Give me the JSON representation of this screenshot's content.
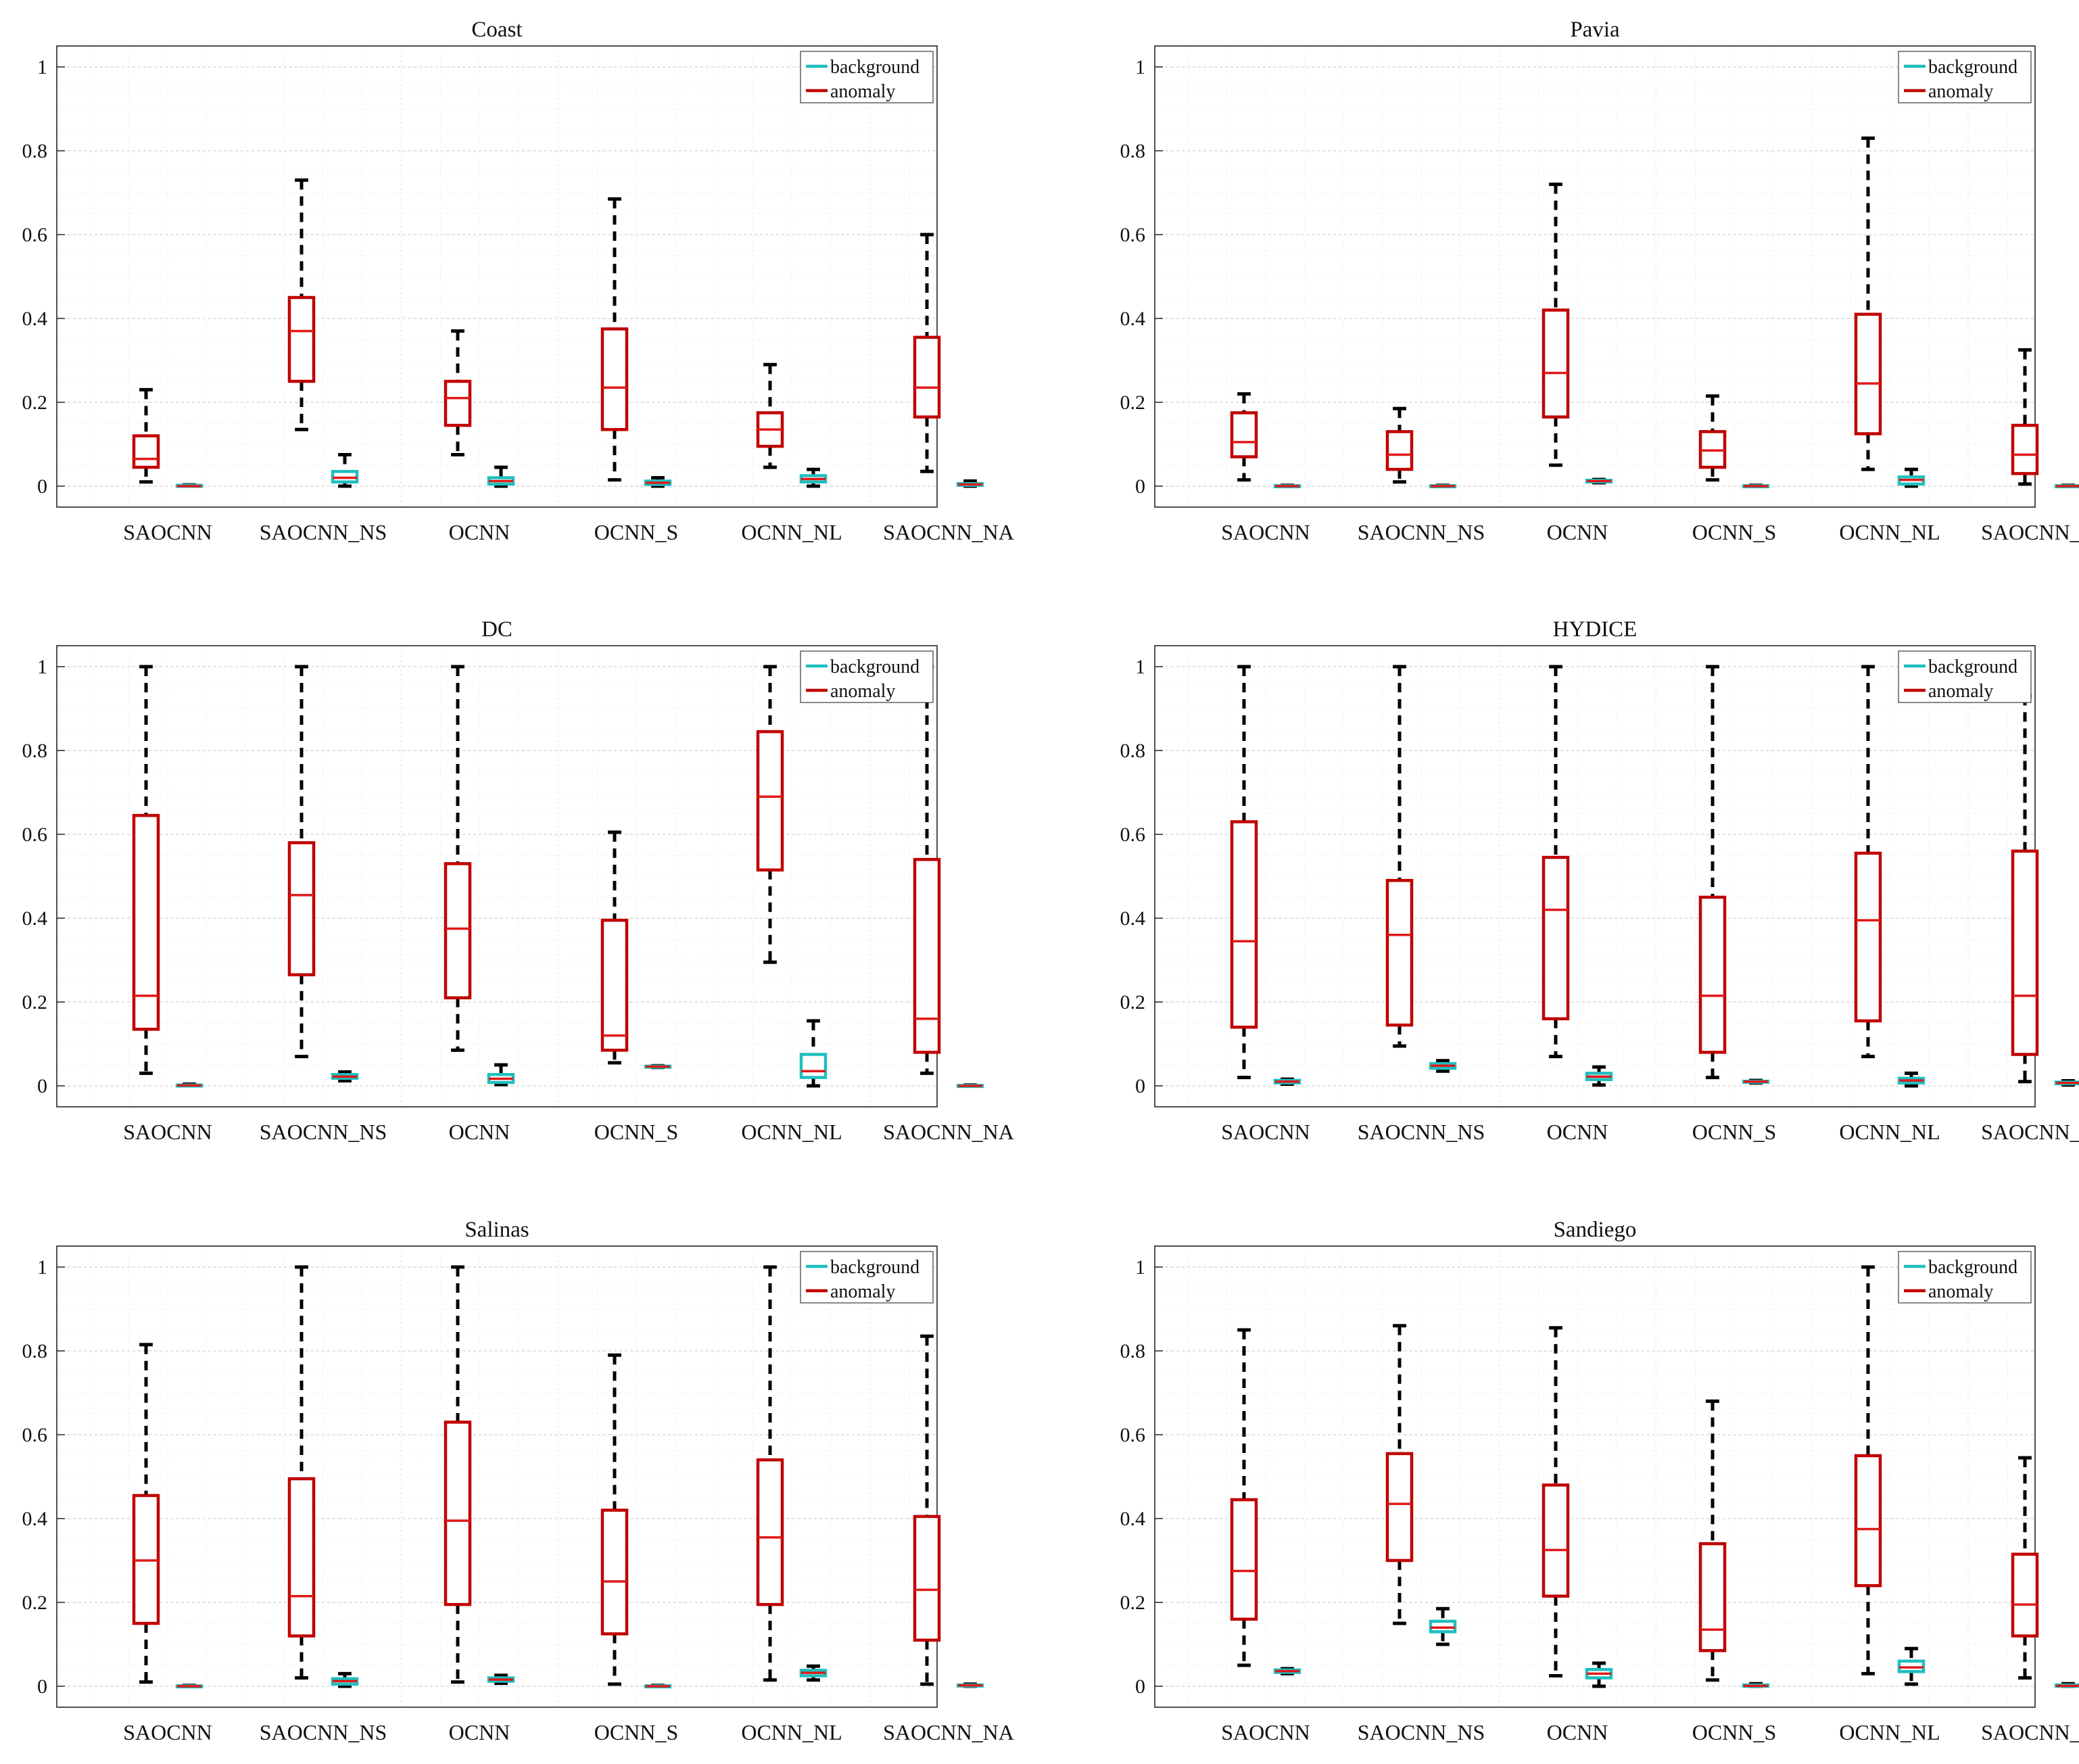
{
  "colors": {
    "background": "#1fbfbf",
    "anomaly": "#c00000",
    "median": "#e01818",
    "whisker": "#000000",
    "grid": "#d9d9d9",
    "axis": "#262626"
  },
  "chart_data": [
    {
      "type": "box",
      "title": "Coast",
      "categories": [
        "SAOCNN",
        "SAOCNN_NS",
        "OCNN",
        "OCNN_S",
        "OCNN_NL",
        "SAOCNN_NA"
      ],
      "legend": [
        "background",
        "anomaly"
      ],
      "legend_position": "top-right",
      "ylim": [
        -0.05,
        1.05
      ],
      "yticks": [
        "0",
        "0.2",
        "0.4",
        "0.6",
        "0.8",
        "1"
      ],
      "grid": true,
      "anomaly": [
        {
          "min": 0.01,
          "q1": 0.045,
          "median": 0.065,
          "q3": 0.12,
          "max": 0.23
        },
        {
          "min": 0.135,
          "q1": 0.25,
          "median": 0.37,
          "q3": 0.45,
          "max": 0.73
        },
        {
          "min": 0.075,
          "q1": 0.145,
          "median": 0.21,
          "q3": 0.25,
          "max": 0.37
        },
        {
          "min": 0.015,
          "q1": 0.135,
          "median": 0.235,
          "q3": 0.375,
          "max": 0.685
        },
        {
          "min": 0.045,
          "q1": 0.095,
          "median": 0.135,
          "q3": 0.175,
          "max": 0.29
        },
        {
          "min": 0.035,
          "q1": 0.165,
          "median": 0.235,
          "q3": 0.355,
          "max": 0.6
        }
      ],
      "background": [
        {
          "min": 0.0,
          "q1": 0.0,
          "median": 0.0,
          "q3": 0.002,
          "max": 0.003
        },
        {
          "min": 0.0,
          "q1": 0.01,
          "median": 0.02,
          "q3": 0.035,
          "max": 0.075
        },
        {
          "min": 0.0,
          "q1": 0.005,
          "median": 0.012,
          "q3": 0.02,
          "max": 0.045
        },
        {
          "min": 0.0,
          "q1": 0.004,
          "median": 0.008,
          "q3": 0.012,
          "max": 0.02
        },
        {
          "min": 0.0,
          "q1": 0.01,
          "median": 0.017,
          "q3": 0.025,
          "max": 0.04
        },
        {
          "min": 0.0,
          "q1": 0.002,
          "median": 0.004,
          "q3": 0.006,
          "max": 0.012
        }
      ]
    },
    {
      "type": "box",
      "title": "Pavia",
      "categories": [
        "SAOCNN",
        "SAOCNN_NS",
        "OCNN",
        "OCNN_S",
        "OCNN_NL",
        "SAOCNN_NA"
      ],
      "legend": [
        "background",
        "anomaly"
      ],
      "legend_position": "top-right",
      "ylim": [
        -0.05,
        1.05
      ],
      "yticks": [
        "0",
        "0.2",
        "0.4",
        "0.6",
        "0.8",
        "1"
      ],
      "grid": true,
      "anomaly": [
        {
          "min": 0.015,
          "q1": 0.07,
          "median": 0.105,
          "q3": 0.175,
          "max": 0.22
        },
        {
          "min": 0.01,
          "q1": 0.04,
          "median": 0.075,
          "q3": 0.13,
          "max": 0.185
        },
        {
          "min": 0.05,
          "q1": 0.165,
          "median": 0.27,
          "q3": 0.42,
          "max": 0.72
        },
        {
          "min": 0.015,
          "q1": 0.045,
          "median": 0.085,
          "q3": 0.13,
          "max": 0.215
        },
        {
          "min": 0.04,
          "q1": 0.125,
          "median": 0.245,
          "q3": 0.41,
          "max": 0.83
        },
        {
          "min": 0.005,
          "q1": 0.03,
          "median": 0.075,
          "q3": 0.145,
          "max": 0.325
        }
      ],
      "background": [
        {
          "min": 0.0,
          "q1": 0.0,
          "median": 0.0,
          "q3": 0.001,
          "max": 0.002
        },
        {
          "min": 0.0,
          "q1": 0.0,
          "median": 0.0,
          "q3": 0.001,
          "max": 0.002
        },
        {
          "min": 0.008,
          "q1": 0.01,
          "median": 0.012,
          "q3": 0.014,
          "max": 0.016
        },
        {
          "min": 0.0,
          "q1": 0.0,
          "median": 0.0,
          "q3": 0.001,
          "max": 0.002
        },
        {
          "min": 0.0,
          "q1": 0.005,
          "median": 0.015,
          "q3": 0.022,
          "max": 0.04
        },
        {
          "min": 0.0,
          "q1": 0.0,
          "median": 0.0,
          "q3": 0.001,
          "max": 0.002
        }
      ]
    },
    {
      "type": "box",
      "title": "DC",
      "categories": [
        "SAOCNN",
        "SAOCNN_NS",
        "OCNN",
        "OCNN_S",
        "OCNN_NL",
        "SAOCNN_NA"
      ],
      "legend": [
        "background",
        "anomaly"
      ],
      "legend_position": "top-right",
      "ylim": [
        -0.05,
        1.05
      ],
      "yticks": [
        "0",
        "0.2",
        "0.4",
        "0.6",
        "0.8",
        "1"
      ],
      "grid": true,
      "anomaly": [
        {
          "min": 0.03,
          "q1": 0.135,
          "median": 0.215,
          "q3": 0.645,
          "max": 1.0
        },
        {
          "min": 0.07,
          "q1": 0.265,
          "median": 0.455,
          "q3": 0.58,
          "max": 1.0
        },
        {
          "min": 0.085,
          "q1": 0.21,
          "median": 0.375,
          "q3": 0.53,
          "max": 1.0
        },
        {
          "min": 0.055,
          "q1": 0.085,
          "median": 0.12,
          "q3": 0.395,
          "max": 0.605
        },
        {
          "min": 0.295,
          "q1": 0.515,
          "median": 0.69,
          "q3": 0.845,
          "max": 1.0
        },
        {
          "min": 0.03,
          "q1": 0.08,
          "median": 0.16,
          "q3": 0.54,
          "max": 1.0
        }
      ],
      "background": [
        {
          "min": 0.0,
          "q1": 0.0,
          "median": 0.001,
          "q3": 0.002,
          "max": 0.004
        },
        {
          "min": 0.012,
          "q1": 0.018,
          "median": 0.022,
          "q3": 0.027,
          "max": 0.033
        },
        {
          "min": 0.003,
          "q1": 0.008,
          "median": 0.017,
          "q3": 0.027,
          "max": 0.05
        },
        {
          "min": 0.044,
          "q1": 0.045,
          "median": 0.046,
          "q3": 0.047,
          "max": 0.048
        },
        {
          "min": 0.0,
          "q1": 0.02,
          "median": 0.035,
          "q3": 0.075,
          "max": 0.155
        },
        {
          "min": 0.0,
          "q1": 0.0,
          "median": 0.0,
          "q3": 0.001,
          "max": 0.002
        }
      ]
    },
    {
      "type": "box",
      "title": "HYDICE",
      "categories": [
        "SAOCNN",
        "SAOCNN_NS",
        "OCNN",
        "OCNN_S",
        "OCNN_NL",
        "SAOCNN_NA"
      ],
      "legend": [
        "background",
        "anomaly"
      ],
      "legend_position": "top-right",
      "ylim": [
        -0.05,
        1.05
      ],
      "yticks": [
        "0",
        "0.2",
        "0.4",
        "0.6",
        "0.8",
        "1"
      ],
      "grid": true,
      "anomaly": [
        {
          "min": 0.02,
          "q1": 0.14,
          "median": 0.345,
          "q3": 0.63,
          "max": 1.0
        },
        {
          "min": 0.095,
          "q1": 0.145,
          "median": 0.36,
          "q3": 0.49,
          "max": 1.0
        },
        {
          "min": 0.07,
          "q1": 0.16,
          "median": 0.42,
          "q3": 0.545,
          "max": 1.0
        },
        {
          "min": 0.02,
          "q1": 0.08,
          "median": 0.215,
          "q3": 0.45,
          "max": 1.0
        },
        {
          "min": 0.07,
          "q1": 0.155,
          "median": 0.395,
          "q3": 0.555,
          "max": 1.0
        },
        {
          "min": 0.01,
          "q1": 0.075,
          "median": 0.215,
          "q3": 0.56,
          "max": 0.93
        }
      ],
      "background": [
        {
          "min": 0.004,
          "q1": 0.007,
          "median": 0.01,
          "q3": 0.013,
          "max": 0.016
        },
        {
          "min": 0.035,
          "q1": 0.042,
          "median": 0.048,
          "q3": 0.053,
          "max": 0.06
        },
        {
          "min": 0.002,
          "q1": 0.015,
          "median": 0.022,
          "q3": 0.03,
          "max": 0.045
        },
        {
          "min": 0.007,
          "q1": 0.009,
          "median": 0.01,
          "q3": 0.011,
          "max": 0.013
        },
        {
          "min": 0.0,
          "q1": 0.007,
          "median": 0.013,
          "q3": 0.018,
          "max": 0.03
        },
        {
          "min": 0.002,
          "q1": 0.005,
          "median": 0.007,
          "q3": 0.009,
          "max": 0.012
        }
      ]
    },
    {
      "type": "box",
      "title": "Salinas",
      "categories": [
        "SAOCNN",
        "SAOCNN_NS",
        "OCNN",
        "OCNN_S",
        "OCNN_NL",
        "SAOCNN_NA"
      ],
      "legend": [
        "background",
        "anomaly"
      ],
      "legend_position": "top-right",
      "ylim": [
        -0.05,
        1.05
      ],
      "yticks": [
        "0",
        "0.2",
        "0.4",
        "0.6",
        "0.8",
        "1"
      ],
      "grid": true,
      "anomaly": [
        {
          "min": 0.01,
          "q1": 0.15,
          "median": 0.3,
          "q3": 0.455,
          "max": 0.815
        },
        {
          "min": 0.02,
          "q1": 0.12,
          "median": 0.215,
          "q3": 0.495,
          "max": 1.0
        },
        {
          "min": 0.01,
          "q1": 0.195,
          "median": 0.395,
          "q3": 0.63,
          "max": 1.0
        },
        {
          "min": 0.005,
          "q1": 0.125,
          "median": 0.25,
          "q3": 0.42,
          "max": 0.79
        },
        {
          "min": 0.015,
          "q1": 0.195,
          "median": 0.355,
          "q3": 0.54,
          "max": 1.0
        },
        {
          "min": 0.005,
          "q1": 0.11,
          "median": 0.23,
          "q3": 0.405,
          "max": 0.835
        }
      ],
      "background": [
        {
          "min": 0.0,
          "q1": 0.0,
          "median": 0.0,
          "q3": 0.001,
          "max": 0.002
        },
        {
          "min": 0.0,
          "q1": 0.005,
          "median": 0.012,
          "q3": 0.018,
          "max": 0.03
        },
        {
          "min": 0.007,
          "q1": 0.012,
          "median": 0.016,
          "q3": 0.02,
          "max": 0.026
        },
        {
          "min": 0.0,
          "q1": 0.0,
          "median": 0.0,
          "q3": 0.001,
          "max": 0.002
        },
        {
          "min": 0.015,
          "q1": 0.025,
          "median": 0.032,
          "q3": 0.038,
          "max": 0.048
        },
        {
          "min": 0.0,
          "q1": 0.001,
          "median": 0.002,
          "q3": 0.003,
          "max": 0.005
        }
      ]
    },
    {
      "type": "box",
      "title": "Sandiego",
      "categories": [
        "SAOCNN",
        "SAOCNN_NS",
        "OCNN",
        "OCNN_S",
        "OCNN_NL",
        "SAOCNN_NA"
      ],
      "legend": [
        "background",
        "anomaly"
      ],
      "legend_position": "top-right",
      "ylim": [
        -0.05,
        1.05
      ],
      "yticks": [
        "0",
        "0.2",
        "0.4",
        "0.6",
        "0.8",
        "1"
      ],
      "grid": true,
      "anomaly": [
        {
          "min": 0.05,
          "q1": 0.16,
          "median": 0.275,
          "q3": 0.445,
          "max": 0.85
        },
        {
          "min": 0.15,
          "q1": 0.3,
          "median": 0.435,
          "q3": 0.555,
          "max": 0.86
        },
        {
          "min": 0.025,
          "q1": 0.215,
          "median": 0.325,
          "q3": 0.48,
          "max": 0.855
        },
        {
          "min": 0.015,
          "q1": 0.085,
          "median": 0.135,
          "q3": 0.34,
          "max": 0.68
        },
        {
          "min": 0.03,
          "q1": 0.24,
          "median": 0.375,
          "q3": 0.55,
          "max": 1.0
        },
        {
          "min": 0.02,
          "q1": 0.12,
          "median": 0.195,
          "q3": 0.315,
          "max": 0.545
        }
      ],
      "background": [
        {
          "min": 0.03,
          "q1": 0.033,
          "median": 0.036,
          "q3": 0.039,
          "max": 0.042
        },
        {
          "min": 0.1,
          "q1": 0.13,
          "median": 0.14,
          "q3": 0.155,
          "max": 0.185
        },
        {
          "min": 0.0,
          "q1": 0.02,
          "median": 0.03,
          "q3": 0.04,
          "max": 0.055
        },
        {
          "min": 0.0,
          "q1": 0.0,
          "median": 0.001,
          "q3": 0.003,
          "max": 0.006
        },
        {
          "min": 0.005,
          "q1": 0.035,
          "median": 0.045,
          "q3": 0.06,
          "max": 0.09
        },
        {
          "min": 0.0,
          "q1": 0.0,
          "median": 0.001,
          "q3": 0.003,
          "max": 0.006
        }
      ]
    }
  ]
}
